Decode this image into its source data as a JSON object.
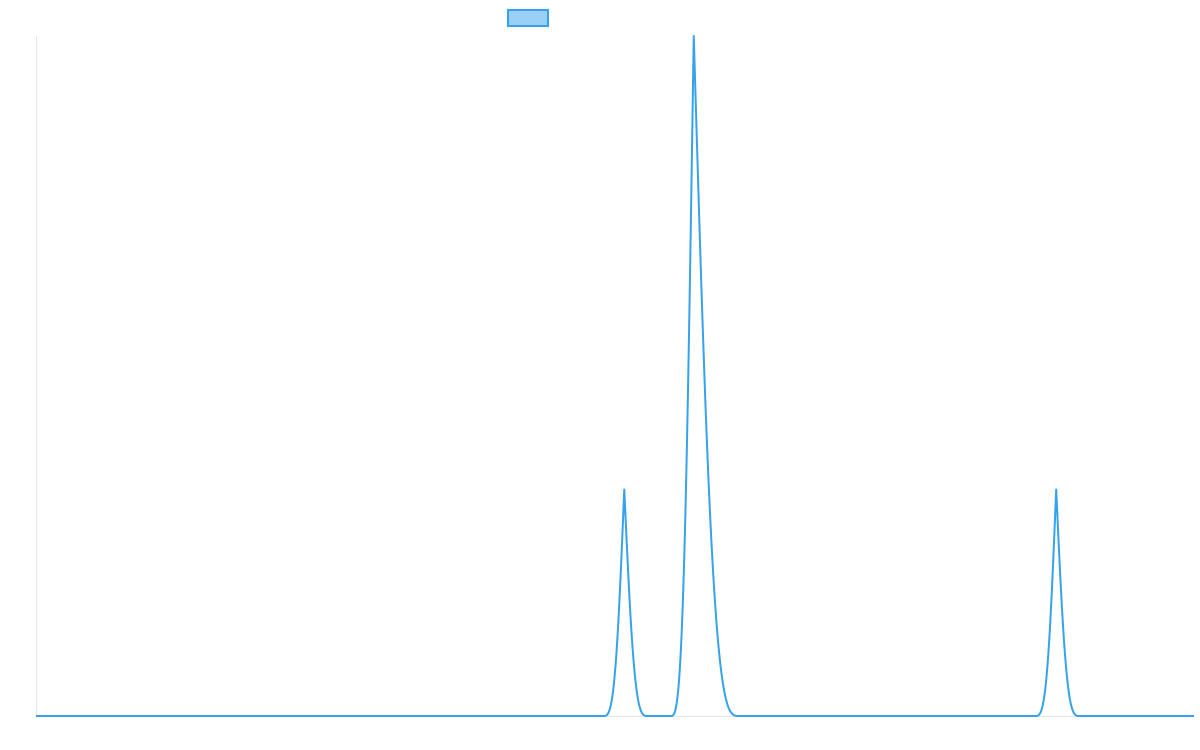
{
  "chart_data": {
    "type": "line",
    "title": "",
    "xlabel": "",
    "ylabel": "",
    "x_range": [
      0,
      1000
    ],
    "ylim": [
      0,
      1
    ],
    "grid": false,
    "legend": {
      "placement": "top-center",
      "entries": [
        {
          "name": "",
          "color": "#36a2eb",
          "fill": "#9ad0f5"
        }
      ]
    },
    "series": [
      {
        "color": "#36a2eb",
        "peaks": [
          {
            "center": 508,
            "height": 0.333,
            "start": 490,
            "end": 528
          },
          {
            "center": 568,
            "height": 1.0,
            "start": 548,
            "end": 607
          },
          {
            "center": 881,
            "height": 0.333,
            "start": 863,
            "end": 901
          }
        ]
      }
    ]
  }
}
